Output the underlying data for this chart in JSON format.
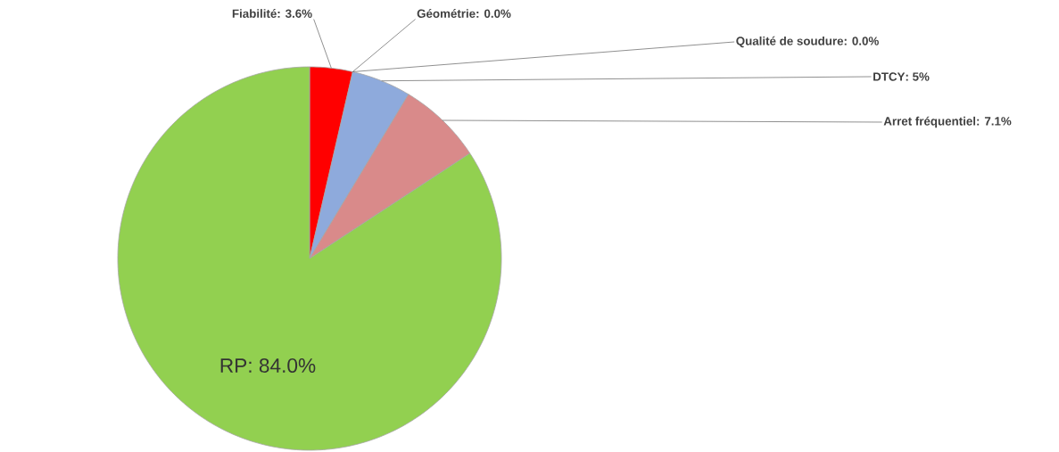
{
  "chart_data": {
    "type": "pie",
    "categories": [
      "Fiabilité",
      "Géométrie",
      "Qualité de soudure",
      "DTCY",
      "Arret fréquentiel",
      "RP"
    ],
    "values": [
      3.6,
      0.0,
      0.0,
      5,
      7.1,
      84.0
    ],
    "value_labels": [
      ": 3.6%",
      ": 0.0%",
      ": 0.0%",
      ": 5%",
      ": 7.1%",
      ": 84.0%"
    ],
    "colors": [
      "#ff0000",
      "#ffc000",
      "#7030a0",
      "#8eaadc",
      "#d98a8a",
      "#92d050"
    ]
  }
}
